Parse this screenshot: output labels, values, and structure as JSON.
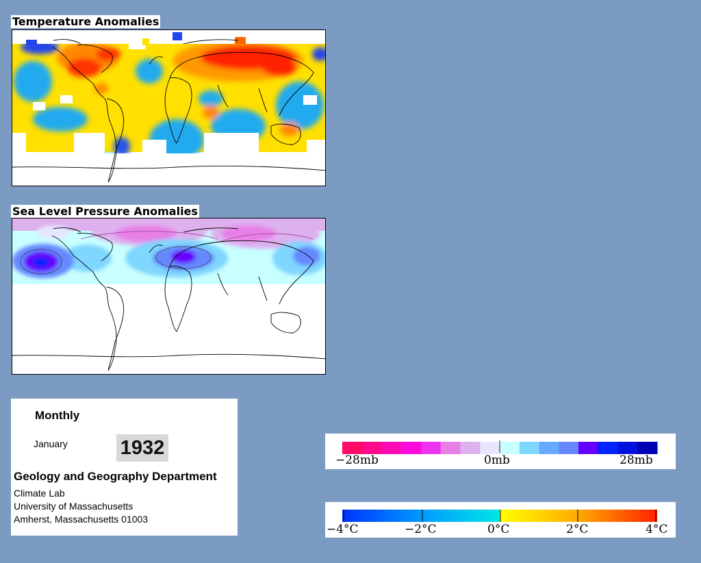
{
  "temperature_map": {
    "title": "Temperature Anomalies"
  },
  "pressure_map": {
    "title": "Sea Level Pressure Anomalies"
  },
  "info": {
    "period": "Monthly",
    "month": "January",
    "year": "1932",
    "department": "Geology and Geography Department",
    "lab": "Climate Lab",
    "university": "University of Massachusetts",
    "address": "Amherst, Massachusetts 01003"
  },
  "pressure_legend": {
    "labels": [
      "−28mb",
      "0mb",
      "28mb"
    ],
    "colors": [
      "#ff0a64",
      "#ff0a8c",
      "#ff0ab4",
      "#ff0adc",
      "#ee33ee",
      "#e680e6",
      "#ddb0ee",
      "#e6e6ff",
      "#c8ffff",
      "#7fd6ff",
      "#66aaff",
      "#6688ff",
      "#6600ff",
      "#0022ff",
      "#0011dd",
      "#0000b4"
    ]
  },
  "temperature_legend": {
    "labels": [
      "−4°C",
      "−2°C",
      "0°C",
      "2°C",
      "4°C"
    ],
    "stops": [
      "#0033ff",
      "#0099ff",
      "#00e6e6",
      "#ffff00",
      "#ffaa00",
      "#ff2200"
    ]
  },
  "colors": {
    "background": "#7b9bc3",
    "warm_anomaly": "#ff1a00",
    "cold_anomaly": "#0044ff"
  }
}
